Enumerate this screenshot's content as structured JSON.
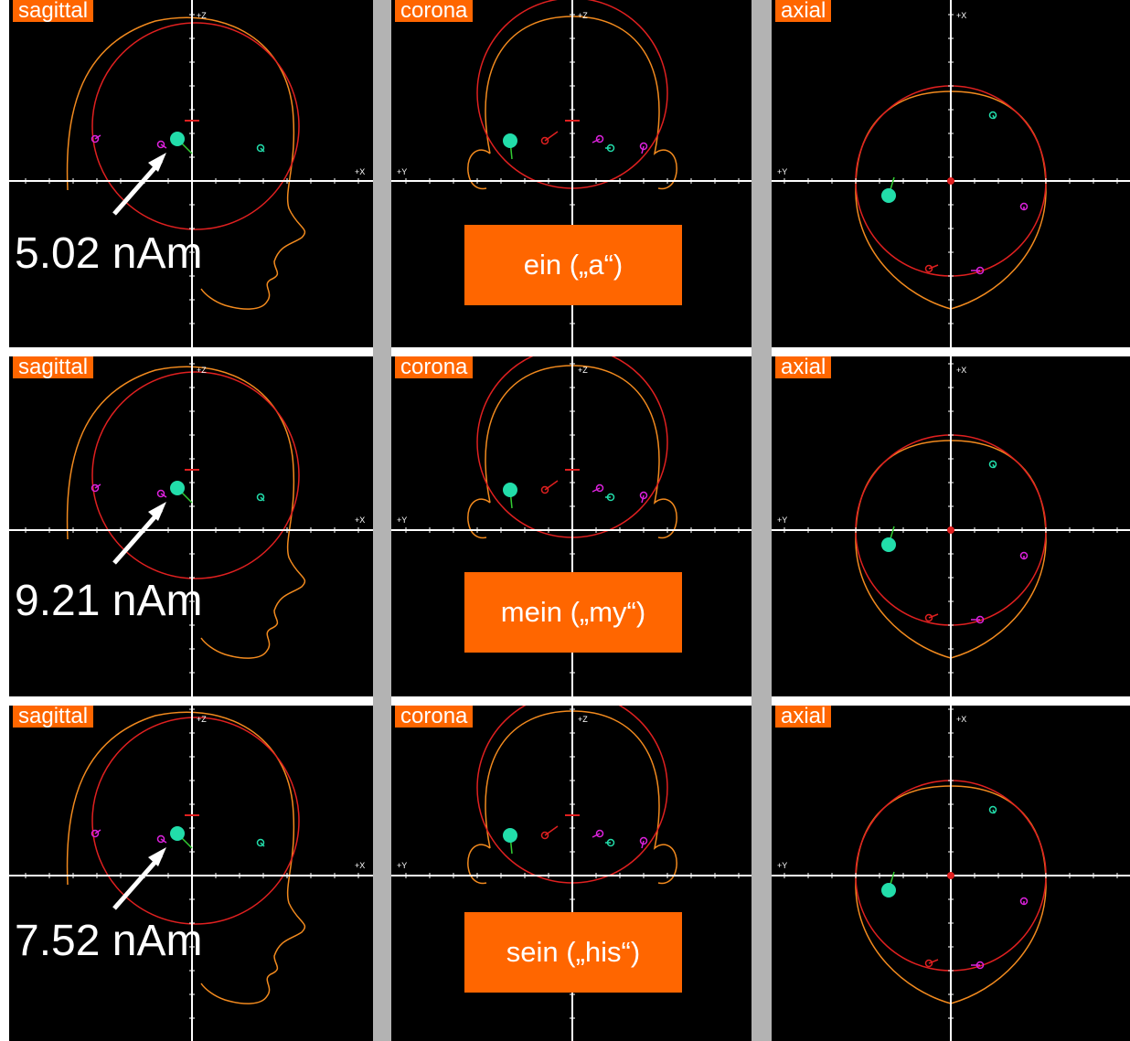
{
  "colors": {
    "panel_bg": "#000000",
    "separator": "#b3b3b3",
    "label_bg": "#ff6600",
    "head_outline": "#f28a1e",
    "sphere": "#e02020",
    "dipole_main": "#22ddaa",
    "dipole_secondary": "#dd22dd",
    "axis": "#ffffff"
  },
  "rows": [
    {
      "sagittal": {
        "label": "sagittal",
        "axis_top": "+Z",
        "axis_right": "+X",
        "moment": "5.02 nAm"
      },
      "coronal": {
        "label": "corona",
        "axis_top": "+Z",
        "axis_left": "+Y",
        "word": "ein („a“)"
      },
      "axial": {
        "label": "axial",
        "axis_top": "+X",
        "axis_left": "+Y"
      }
    },
    {
      "sagittal": {
        "label": "sagittal",
        "axis_top": "+Z",
        "axis_right": "+X",
        "moment": "9.21 nAm"
      },
      "coronal": {
        "label": "corona",
        "axis_top": "+Z",
        "axis_left": "+Y",
        "word": "mein („my“)"
      },
      "axial": {
        "label": "axial",
        "axis_top": "+X",
        "axis_left": "+Y"
      }
    },
    {
      "sagittal": {
        "label": "sagittal",
        "axis_top": "+Z",
        "axis_right": "+X",
        "moment": "7.52 nAm"
      },
      "coronal": {
        "label": "corona",
        "axis_top": "+Z",
        "axis_left": "+Y",
        "word": "sein („his“)"
      },
      "axial": {
        "label": "axial",
        "axis_top": "+X",
        "axis_left": "+Y"
      }
    }
  ]
}
